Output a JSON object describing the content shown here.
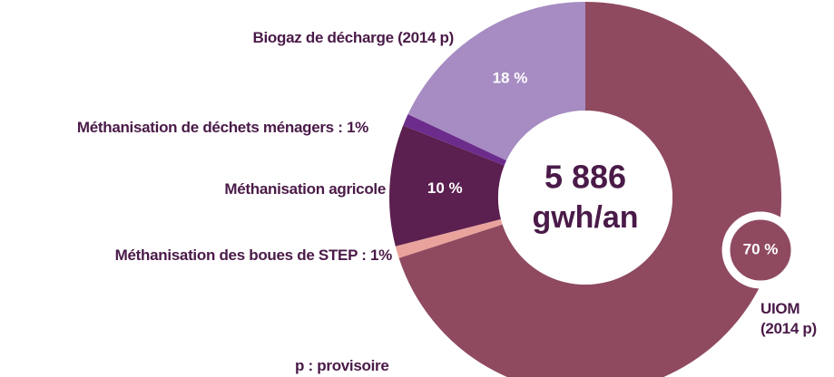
{
  "chart_data": {
    "type": "donut",
    "categories": [
      "UIOM (2014 p)",
      "Méthanisation des boues de STEP : 1%",
      "Méthanisation agricole",
      "Méthanisation de déchets ménagers : 1%",
      "Biogaz de décharge (2014 p)"
    ],
    "values": [
      70,
      1,
      10,
      1,
      18
    ],
    "value_labels": [
      "70 %",
      null,
      "10 %",
      null,
      "18 %"
    ],
    "colors": [
      "#8f4a60",
      "#e9a39c",
      "#5b1f50",
      "#6c2c8c",
      "#a68cc2"
    ],
    "center_value": "5 886",
    "center_unit": "gwh/an",
    "note": "p : provisoire"
  }
}
